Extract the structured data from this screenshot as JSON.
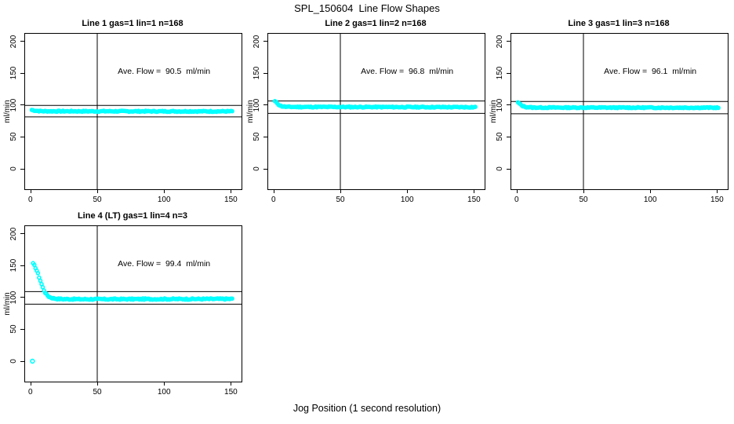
{
  "figure": {
    "title": "SPL_150604  Line Flow Shapes",
    "xlabel": "Jog Position (1 second resolution)",
    "ylabel": "ml/min",
    "point_color": "#00FFFF",
    "axis_color": "#000000",
    "background": "#FFFFFF"
  },
  "chart_data": [
    {
      "type": "scatter",
      "title": "Line 1 gas=1 lin=1 n=168",
      "annotation": "Ave. Flow =  90.5  ml/min",
      "ave_flow": 90.5,
      "n": 168,
      "ylabel": "ml/min",
      "x_ticks": [
        0,
        50,
        100,
        150
      ],
      "y_ticks": [
        0,
        50,
        100,
        150,
        200
      ],
      "xlim": [
        -4,
        158
      ],
      "ylim": [
        -32,
        212
      ],
      "hlines": [
        99.6,
        81.5
      ],
      "vline": 50,
      "profile": [
        [
          1,
          92.5
        ],
        [
          3,
          91.5
        ],
        [
          6,
          90.8
        ],
        [
          10,
          90.4
        ],
        [
          151,
          90.2
        ]
      ],
      "outliers": [],
      "x_start": 1,
      "x_end": 151,
      "n_points": 168,
      "jitter": 0.8,
      "seed": 7
    },
    {
      "type": "scatter",
      "title": "Line 2 gas=1 lin=2 n=168",
      "annotation": "Ave. Flow =  96.8  ml/min",
      "ave_flow": 96.8,
      "n": 168,
      "ylabel": "ml/min",
      "x_ticks": [
        0,
        50,
        100,
        150
      ],
      "y_ticks": [
        0,
        50,
        100,
        150,
        200
      ],
      "xlim": [
        -4,
        158
      ],
      "ylim": [
        -32,
        212
      ],
      "hlines": [
        106.5,
        87.1
      ],
      "vline": 50,
      "profile": [
        [
          1,
          106
        ],
        [
          2,
          104.5
        ],
        [
          4,
          100.5
        ],
        [
          6,
          98.2
        ],
        [
          10,
          97.2
        ],
        [
          151,
          96.8
        ]
      ],
      "outliers": [],
      "x_start": 1,
      "x_end": 151,
      "n_points": 168,
      "jitter": 0.8,
      "seed": 11
    },
    {
      "type": "scatter",
      "title": "Line 3 gas=1 lin=3 n=168",
      "annotation": "Ave. Flow =  96.1  ml/min",
      "ave_flow": 96.1,
      "n": 168,
      "ylabel": "ml/min",
      "x_ticks": [
        0,
        50,
        100,
        150
      ],
      "y_ticks": [
        0,
        50,
        100,
        150,
        200
      ],
      "xlim": [
        -4,
        158
      ],
      "ylim": [
        -32,
        212
      ],
      "hlines": [
        105.7,
        86.5
      ],
      "vline": 50,
      "profile": [
        [
          1,
          104
        ],
        [
          2,
          102.5
        ],
        [
          4,
          99
        ],
        [
          7,
          97
        ],
        [
          12,
          96.2
        ],
        [
          151,
          96
        ]
      ],
      "outliers": [],
      "x_start": 1,
      "x_end": 151,
      "n_points": 168,
      "jitter": 0.8,
      "seed": 13
    },
    {
      "type": "scatter",
      "title": "Line 4 (LT) gas=1 lin=4 n=3",
      "annotation": "Ave. Flow =  99.4  ml/min",
      "ave_flow": 99.4,
      "n": 3,
      "ylabel": "ml/min",
      "x_ticks": [
        0,
        50,
        100,
        150
      ],
      "y_ticks": [
        0,
        50,
        100,
        150,
        200
      ],
      "xlim": [
        -4,
        158
      ],
      "ylim": [
        -32,
        212
      ],
      "hlines": [
        109.3,
        89.5
      ],
      "vline": 50,
      "profile": [
        [
          2,
          153
        ],
        [
          3,
          150
        ],
        [
          4,
          146
        ],
        [
          5,
          141
        ],
        [
          6,
          135
        ],
        [
          7,
          129
        ],
        [
          8,
          123
        ],
        [
          9,
          117
        ],
        [
          10,
          112
        ],
        [
          11,
          108
        ],
        [
          12,
          105
        ],
        [
          13,
          103
        ],
        [
          14,
          101
        ],
        [
          16,
          99.5
        ],
        [
          18,
          98.5
        ],
        [
          20,
          98
        ],
        [
          25,
          97.5
        ],
        [
          40,
          97.3
        ],
        [
          151,
          97.8
        ]
      ],
      "outliers": [
        [
          1.5,
          0
        ]
      ],
      "x_start": 2,
      "x_end": 151,
      "n_points": 166,
      "jitter": 1.0,
      "seed": 17
    }
  ]
}
